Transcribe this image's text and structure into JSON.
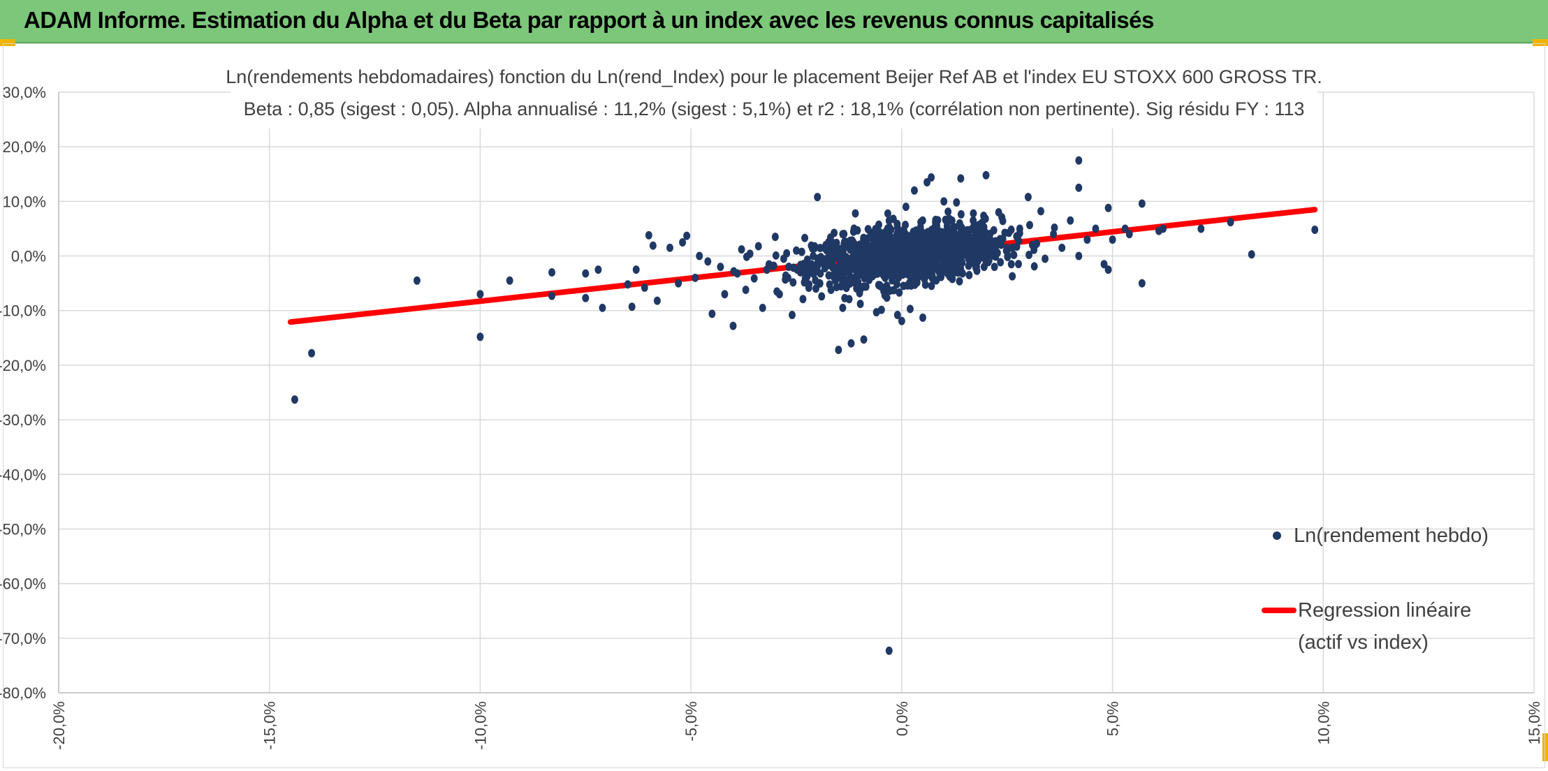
{
  "header": {
    "title": "ADAM Informe. Estimation du Alpha et du Beta par rapport à un index avec les revenus connus capitalisés"
  },
  "colors": {
    "banner": "#7cc77a",
    "corner_accent": "#f0b400",
    "points": "#203864",
    "regression": "#ff0000",
    "grid": "#d9d9d9"
  },
  "chart_data": {
    "type": "scatter",
    "title": "Ln(rendements hebdomadaires) fonction du Ln(rend_Index) pour le placement Beijer Ref AB et l'index EU STOXX 600 GROSS TR.",
    "subtitle": "Beta : 0,85 (sigest : 0,05). Alpha annualisé : 11,2% (sigest : 5,1%) et r2 : 18,1% (corrélation non pertinente). Sig résidu FY : 113",
    "xlabel": "",
    "ylabel": "",
    "xlim": [
      -20,
      15
    ],
    "ylim": [
      -80,
      30
    ],
    "x_ticks": [
      -20,
      -15,
      -10,
      -5,
      0,
      5,
      10,
      15
    ],
    "y_ticks": [
      30,
      20,
      10,
      0,
      -10,
      -20,
      -30,
      -40,
      -50,
      -60,
      -70,
      -80
    ],
    "x_tick_labels": [
      "-20,0%",
      "-15,0%",
      "-10,0%",
      "-5,0%",
      "0,0%",
      "5,0%",
      "10,0%",
      "15,0%"
    ],
    "y_tick_labels": [
      "30,0%",
      "20,0%",
      "10,0%",
      "0,0%",
      "-10,0%",
      "-20,0%",
      "-30,0%",
      "-40,0%",
      "-50,0%",
      "-60,0%",
      "-70,0%",
      "-80,0%"
    ],
    "grid": true,
    "legend_position": "right",
    "series": [
      {
        "name": "Ln(rendement hebdo)",
        "kind": "points",
        "points": [
          [
            -14.4,
            -26.3
          ],
          [
            -14.0,
            -17.8
          ],
          [
            -11.5,
            -4.5
          ],
          [
            -10.0,
            -7.0
          ],
          [
            -10.0,
            -14.8
          ],
          [
            -9.3,
            -4.5
          ],
          [
            -8.3,
            -3.0
          ],
          [
            -8.3,
            -7.3
          ],
          [
            -7.5,
            -3.2
          ],
          [
            -7.5,
            -7.7
          ],
          [
            -7.2,
            -2.5
          ],
          [
            -7.1,
            -9.5
          ],
          [
            -6.5,
            -5.2
          ],
          [
            -6.4,
            -9.3
          ],
          [
            -6.3,
            -2.5
          ],
          [
            -6.1,
            -5.8
          ],
          [
            -6.0,
            3.8
          ],
          [
            -5.9,
            1.9
          ],
          [
            -5.8,
            -8.2
          ],
          [
            -5.5,
            1.5
          ],
          [
            -5.3,
            -5.0
          ],
          [
            -5.2,
            2.5
          ],
          [
            -5.1,
            3.7
          ],
          [
            -4.9,
            -4.0
          ],
          [
            -4.8,
            0.0
          ],
          [
            -4.6,
            -1.0
          ],
          [
            -4.5,
            -10.6
          ],
          [
            -4.3,
            -2.0
          ],
          [
            -4.2,
            -7.0
          ],
          [
            -4.0,
            -12.8
          ],
          [
            -3.9,
            -3.2
          ],
          [
            -3.8,
            1.2
          ],
          [
            -3.7,
            -6.2
          ],
          [
            -3.6,
            0.4
          ],
          [
            -3.5,
            -4.1
          ],
          [
            -3.4,
            1.8
          ],
          [
            -3.3,
            -9.5
          ],
          [
            -3.2,
            -2.5
          ],
          [
            -3.0,
            3.5
          ],
          [
            -2.9,
            -7.0
          ],
          [
            -2.8,
            -0.5
          ],
          [
            -2.7,
            -4.0
          ],
          [
            -2.6,
            -10.8
          ],
          [
            -2.5,
            1.0
          ],
          [
            -2.4,
            -3.0
          ],
          [
            -2.3,
            3.3
          ],
          [
            -2.2,
            -5.2
          ],
          [
            -2.1,
            0.0
          ],
          [
            -2.0,
            -1.9
          ],
          [
            -2.0,
            10.8
          ],
          [
            -1.9,
            -7.4
          ],
          [
            -1.8,
            2.0
          ],
          [
            -1.7,
            -0.8
          ],
          [
            -1.6,
            -4.0
          ],
          [
            -1.5,
            -17.2
          ],
          [
            -1.4,
            4.0
          ],
          [
            -1.4,
            -9.5
          ],
          [
            -1.3,
            -2.5
          ],
          [
            -1.2,
            -16.0
          ],
          [
            -1.1,
            7.8
          ],
          [
            -1.0,
            -6.8
          ],
          [
            -0.9,
            -15.3
          ],
          [
            -0.8,
            0.8
          ],
          [
            -0.7,
            -3.5
          ],
          [
            -0.6,
            -10.3
          ],
          [
            -0.5,
            2.2
          ],
          [
            -0.4,
            -7.2
          ],
          [
            -0.3,
            -72.3
          ],
          [
            -0.2,
            6.8
          ],
          [
            -0.1,
            -10.8
          ],
          [
            0.0,
            -11.9
          ],
          [
            0.1,
            9.0
          ],
          [
            0.2,
            -9.7
          ],
          [
            0.3,
            12.0
          ],
          [
            0.4,
            -3.8
          ],
          [
            0.5,
            -11.3
          ],
          [
            0.6,
            13.5
          ],
          [
            0.7,
            14.4
          ],
          [
            0.8,
            6.2
          ],
          [
            0.9,
            -2.2
          ],
          [
            1.0,
            10.0
          ],
          [
            1.1,
            4.5
          ],
          [
            1.2,
            -4.2
          ],
          [
            1.3,
            9.8
          ],
          [
            1.4,
            14.2
          ],
          [
            1.5,
            2.8
          ],
          [
            1.6,
            -3.5
          ],
          [
            1.7,
            7.8
          ],
          [
            1.8,
            -1.0
          ],
          [
            1.9,
            6.0
          ],
          [
            2.0,
            14.8
          ],
          [
            2.1,
            3.0
          ],
          [
            2.2,
            -2.0
          ],
          [
            2.3,
            8.0
          ],
          [
            2.5,
            1.5
          ],
          [
            2.6,
            -1.5
          ],
          [
            2.8,
            5.0
          ],
          [
            3.0,
            10.8
          ],
          [
            3.1,
            2.0
          ],
          [
            3.3,
            8.2
          ],
          [
            3.4,
            -0.5
          ],
          [
            3.6,
            4.0
          ],
          [
            3.8,
            1.5
          ],
          [
            4.0,
            6.5
          ],
          [
            4.2,
            0.0
          ],
          [
            4.2,
            17.5
          ],
          [
            4.2,
            12.5
          ],
          [
            4.4,
            3.0
          ],
          [
            4.6,
            5.0
          ],
          [
            4.8,
            -1.5
          ],
          [
            4.9,
            8.8
          ],
          [
            4.9,
            -2.5
          ],
          [
            5.0,
            3.0
          ],
          [
            5.3,
            5.0
          ],
          [
            5.4,
            4.0
          ],
          [
            5.7,
            9.6
          ],
          [
            5.7,
            -5.0
          ],
          [
            6.1,
            4.6
          ],
          [
            6.2,
            5.0
          ],
          [
            7.1,
            5.0
          ],
          [
            7.8,
            6.2
          ],
          [
            8.3,
            0.3
          ],
          [
            9.8,
            4.8
          ]
        ]
      },
      {
        "name": "Regression linéaire\n(actif vs index)",
        "kind": "line",
        "points": [
          [
            -14.5,
            -12.1
          ],
          [
            9.8,
            8.5
          ]
        ]
      }
    ]
  }
}
